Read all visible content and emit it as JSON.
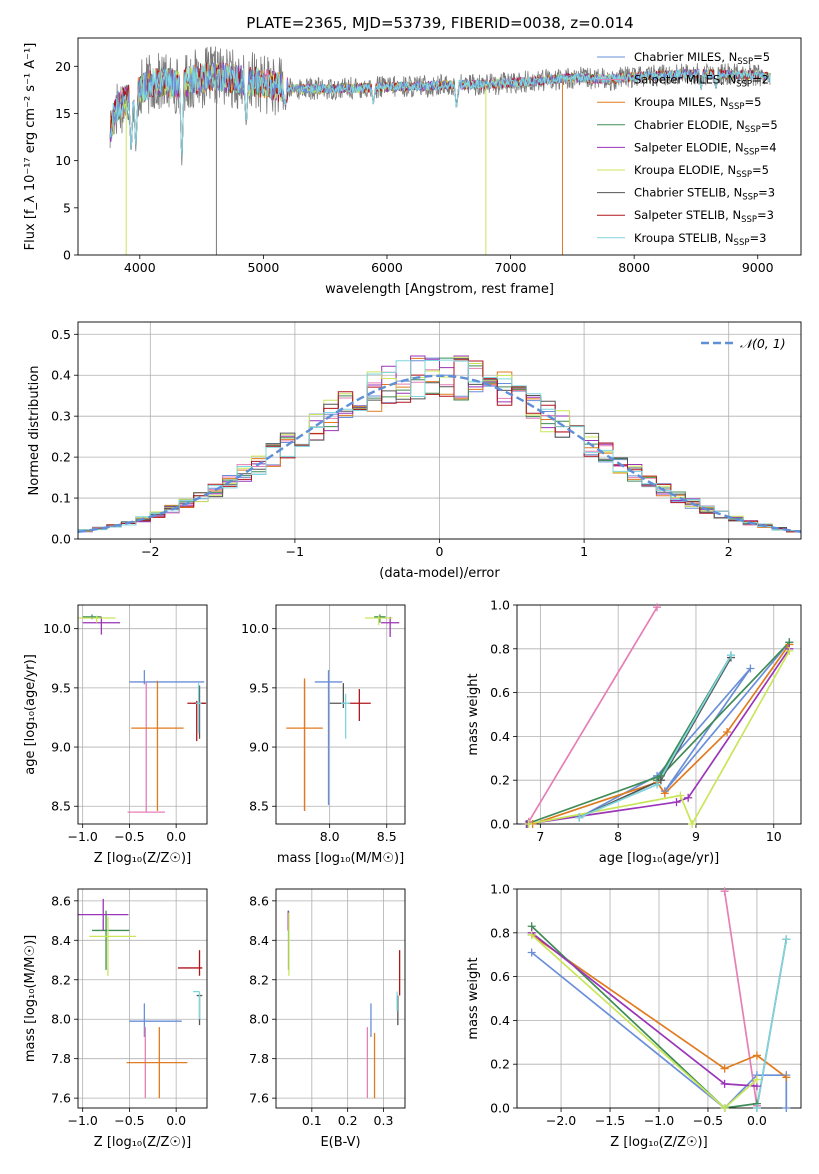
{
  "figure": {
    "title": "PLATE=2365, MJD=53739, FIBERID=0038, z=0.014"
  },
  "colors": {
    "Chabrier MILES": "#6a8fd8",
    "Salpeter MILES": "#e57fb5",
    "Kroupa MILES": "#e07b1f",
    "Chabrier ELODIE": "#3f8c57",
    "Salpeter ELODIE": "#9a35b8",
    "Kroupa ELODIE": "#c9e55a",
    "Chabrier STELIB": "#555555",
    "Salpeter STELIB": "#b0151c",
    "Kroupa STELIB": "#7fd6de",
    "normal_curve": "#5f8fd8",
    "grid": "#b0b0b0"
  },
  "chart_data": [
    {
      "id": "spectrum",
      "type": "line",
      "xlabel": "wavelength [Angstrom, rest frame]",
      "ylabel": "Flux [f_λ 10⁻¹⁷ erg cm⁻² s⁻¹ A⁻¹]",
      "xlim": [
        3500,
        9350
      ],
      "ylim": [
        0,
        23
      ],
      "xticks": [
        4000,
        5000,
        6000,
        7000,
        8000,
        9000
      ],
      "yticks": [
        0,
        5,
        10,
        15,
        20
      ],
      "grid": false,
      "legend_position": "top-right",
      "legend": [
        {
          "name": "Chabrier MILES",
          "main": "Chabrier MILES, N",
          "sub": "SSP",
          "tail": "=5"
        },
        {
          "name": "Salpeter MILES",
          "main": "Salpeter MILES, N",
          "sub": "SSP",
          "tail": "=2"
        },
        {
          "name": "Kroupa MILES",
          "main": "Kroupa MILES, N",
          "sub": "SSP",
          "tail": "=5"
        },
        {
          "name": "Chabrier ELODIE",
          "main": "Chabrier ELODIE, N",
          "sub": "SSP",
          "tail": "=5"
        },
        {
          "name": "Salpeter ELODIE",
          "main": "Salpeter ELODIE, N",
          "sub": "SSP",
          "tail": "=4"
        },
        {
          "name": "Kroupa ELODIE",
          "main": "Kroupa ELODIE, N",
          "sub": "SSP",
          "tail": "=5"
        },
        {
          "name": "Chabrier STELIB",
          "main": "Chabrier STELIB, N",
          "sub": "SSP",
          "tail": "=3"
        },
        {
          "name": "Salpeter STELIB",
          "main": "Salpeter STELIB, N",
          "sub": "SSP",
          "tail": "=3"
        },
        {
          "name": "Kroupa STELIB",
          "main": "Kroupa STELIB, N",
          "sub": "SSP",
          "tail": "=3"
        }
      ],
      "continuum": [
        [
          3760,
          13
        ],
        [
          3800,
          15.5
        ],
        [
          3900,
          16.5
        ],
        [
          4000,
          17.5
        ],
        [
          4100,
          18.2
        ],
        [
          4200,
          18.3
        ],
        [
          4300,
          18
        ],
        [
          4400,
          18.5
        ],
        [
          4600,
          19
        ],
        [
          4800,
          18.6
        ],
        [
          5000,
          18.2
        ],
        [
          5200,
          17.6
        ],
        [
          5500,
          17.6
        ],
        [
          6000,
          17.8
        ],
        [
          6500,
          18
        ],
        [
          7000,
          18.2
        ],
        [
          7500,
          18.8
        ],
        [
          7800,
          18.6
        ],
        [
          8000,
          18.9
        ],
        [
          8500,
          19.2
        ],
        [
          9000,
          19.1
        ],
        [
          9100,
          18.8
        ]
      ],
      "dips": [
        [
          3890,
          0
        ],
        [
          4620,
          0
        ],
        [
          6800,
          0
        ],
        [
          7420,
          0
        ],
        [
          3930,
          10.5
        ],
        [
          3968,
          11
        ],
        [
          4340,
          9.5
        ],
        [
          4861,
          13.5
        ],
        [
          5175,
          15.8
        ],
        [
          5890,
          16
        ],
        [
          6563,
          15.5
        ],
        [
          8542,
          17.5
        ],
        [
          8662,
          17.6
        ]
      ]
    },
    {
      "id": "residual-histogram",
      "type": "step",
      "xlabel": "(data-model)/error",
      "ylabel": "Normed distribution",
      "xlim": [
        -2.5,
        2.5
      ],
      "ylim": [
        0,
        0.53
      ],
      "xticks": [
        -2,
        -1,
        0,
        1,
        2
      ],
      "yticks": [
        0.0,
        0.1,
        0.2,
        0.3,
        0.4,
        0.5
      ],
      "grid": true,
      "legend_position": "top-right",
      "legend": [
        {
          "name": "normal",
          "label": "𝒩(0, 1)"
        }
      ],
      "bin_width": 0.1,
      "normal": {
        "mean": 0,
        "sigma": 1
      }
    },
    {
      "id": "age-vs-Z",
      "type": "errorbar",
      "xlabel": "Z [log₁₀(Z/Z☉)]",
      "ylabel": "age  [log₁₀(age/yr)]",
      "xlim": [
        -1.05,
        0.33
      ],
      "ylim": [
        8.35,
        10.2
      ],
      "xticks": [
        -1.0,
        -0.5,
        0.0
      ],
      "yticks": [
        8.5,
        9.0,
        9.5,
        10.0
      ],
      "grid": true,
      "points": [
        {
          "s": "Chabrier MILES",
          "x": -0.1,
          "xe": [
            0.4,
            0.4
          ],
          "y": 9.55,
          "ye": [
            0.0,
            0.0
          ]
        },
        {
          "s": "Chabrier MILES",
          "x": -0.34,
          "xe": [
            0,
            0
          ],
          "y": 9.55,
          "ye": [
            0.02,
            0.1
          ]
        },
        {
          "s": "Salpeter MILES",
          "x": -0.32,
          "xe": [
            0.2,
            0.2
          ],
          "y": 8.45,
          "ye": [
            0.0,
            1.1
          ]
        },
        {
          "s": "Kroupa MILES",
          "x": -0.2,
          "xe": [
            0.28,
            0.28
          ],
          "y": 9.16,
          "ye": [
            0.7,
            0.4
          ]
        },
        {
          "s": "Chabrier ELODIE",
          "x": -0.9,
          "xe": [
            0.1,
            0.1
          ],
          "y": 10.1,
          "ye": [
            0.02,
            0.02
          ]
        },
        {
          "s": "Salpeter ELODIE",
          "x": -0.8,
          "xe": [
            0.2,
            0.2
          ],
          "y": 10.05,
          "ye": [
            0.1,
            0.05
          ]
        },
        {
          "s": "Kroupa ELODIE",
          "x": -0.85,
          "xe": [
            0.2,
            0.2
          ],
          "y": 10.09,
          "ye": [
            0.04,
            0.02
          ]
        },
        {
          "s": "Chabrier STELIB",
          "x": 0.25,
          "xe": [
            0.06,
            0.06
          ],
          "y": 9.37,
          "ye": [
            0.3,
            0.15
          ]
        },
        {
          "s": "Salpeter STELIB",
          "x": 0.22,
          "xe": [
            0.1,
            0.1
          ],
          "y": 9.37,
          "ye": [
            0.32,
            0.02
          ]
        },
        {
          "s": "Kroupa STELIB",
          "x": 0.24,
          "xe": [
            0.03,
            0.03
          ],
          "y": 9.37,
          "ye": [
            0.25,
            0.17
          ]
        }
      ]
    },
    {
      "id": "age-vs-mass",
      "type": "errorbar",
      "xlabel": "mass [log₁₀(M/M☉)]",
      "ylabel": "",
      "xlim": [
        7.53,
        8.66
      ],
      "ylim": [
        8.35,
        10.2
      ],
      "xticks": [
        8.0,
        8.5
      ],
      "yticks": [
        8.5,
        9.0,
        9.5,
        10.0
      ],
      "grid": true,
      "points": [
        {
          "s": "Chabrier MILES",
          "x": 7.99,
          "xe": [
            0.12,
            0.12
          ],
          "y": 9.55,
          "ye": [
            1.04,
            0.1
          ]
        },
        {
          "s": "Salpeter MILES",
          "x": 7.78,
          "xe": [
            0.0,
            0.0
          ],
          "y": 9.16,
          "ye": [
            0.7,
            0.4
          ]
        },
        {
          "s": "Kroupa MILES",
          "x": 7.78,
          "xe": [
            0.16,
            0.16
          ],
          "y": 9.16,
          "ye": [
            0.7,
            0.42
          ]
        },
        {
          "s": "Chabrier ELODIE",
          "x": 8.44,
          "xe": [
            0.05,
            0.05
          ],
          "y": 10.1,
          "ye": [
            0.05,
            0.02
          ]
        },
        {
          "s": "Salpeter ELODIE",
          "x": 8.53,
          "xe": [
            0.08,
            0.08
          ],
          "y": 10.05,
          "ye": [
            0.12,
            0.05
          ]
        },
        {
          "s": "Kroupa ELODIE",
          "x": 8.43,
          "xe": [
            0.12,
            0.12
          ],
          "y": 10.09,
          "ye": [
            0.06,
            0.02
          ]
        },
        {
          "s": "Chabrier STELIB",
          "x": 8.12,
          "xe": [
            0.12,
            0.03
          ],
          "y": 9.37,
          "ye": [
            0.04,
            0.17
          ]
        },
        {
          "s": "Salpeter STELIB",
          "x": 8.26,
          "xe": [
            0.1,
            0.1
          ],
          "y": 9.37,
          "ye": [
            0.15,
            0.12
          ]
        },
        {
          "s": "Kroupa STELIB",
          "x": 8.14,
          "xe": [
            0.04,
            0.04
          ],
          "y": 9.37,
          "ye": [
            0.3,
            0.08
          ]
        }
      ]
    },
    {
      "id": "mass-weight-vs-age",
      "type": "line",
      "xlabel": "age  [log₁₀(age/yr)]",
      "ylabel": "mass weight",
      "xlim": [
        6.7,
        10.35
      ],
      "ylim": [
        0,
        1.0
      ],
      "xticks": [
        7,
        8,
        9,
        10
      ],
      "yticks": [
        0.0,
        0.2,
        0.4,
        0.6,
        0.8,
        1.0
      ],
      "grid": true,
      "series": [
        {
          "s": "Salpeter MILES",
          "x": [
            6.85,
            8.5
          ],
          "y": [
            0.01,
            0.99
          ]
        },
        {
          "s": "Chabrier MILES",
          "x": [
            7.5,
            8.5,
            9.7,
            8.6,
            10.2
          ],
          "y": [
            0.03,
            0.22,
            0.71,
            0.15,
            0.83
          ]
        },
        {
          "s": "Kroupa MILES",
          "x": [
            6.9,
            8.5,
            8.6,
            9.4,
            10.2
          ],
          "y": [
            0.0,
            0.19,
            0.14,
            0.42,
            0.82
          ]
        },
        {
          "s": "Chabrier ELODIE",
          "x": [
            6.82,
            8.55,
            9.45,
            8.5,
            10.2
          ],
          "y": [
            0.0,
            0.22,
            0.77,
            0.2,
            0.83
          ]
        },
        {
          "s": "Salpeter ELODIE",
          "x": [
            6.83,
            8.75,
            8.9,
            10.2
          ],
          "y": [
            0.0,
            0.1,
            0.12,
            0.8
          ]
        },
        {
          "s": "Kroupa ELODIE",
          "x": [
            6.85,
            8.8,
            8.95,
            10.2
          ],
          "y": [
            0.0,
            0.13,
            0.0,
            0.79
          ]
        },
        {
          "s": "Chabrier STELIB",
          "x": [
            7.5,
            8.55,
            9.45
          ],
          "y": [
            0.03,
            0.2,
            0.76
          ]
        },
        {
          "s": "Kroupa STELIB",
          "x": [
            7.5,
            8.5,
            9.45
          ],
          "y": [
            0.03,
            0.18,
            0.77
          ]
        }
      ]
    },
    {
      "id": "mass-vs-Z",
      "type": "errorbar",
      "xlabel": "Z [log₁₀(Z/Z☉)]",
      "ylabel": "mass [log₁₀(M/M☉)]",
      "xlim": [
        -1.05,
        0.33
      ],
      "ylim": [
        7.55,
        8.66
      ],
      "xticks": [
        -1.0,
        -0.5,
        0.0
      ],
      "yticks": [
        7.6,
        7.8,
        8.0,
        8.2,
        8.4,
        8.6
      ],
      "grid": true,
      "points": [
        {
          "s": "Chabrier MILES",
          "x": -0.34,
          "xe": [
            0.16,
            0.4
          ],
          "y": 7.99,
          "ye": [
            0.08,
            0.09
          ]
        },
        {
          "s": "Salpeter MILES",
          "x": -0.33,
          "xe": [
            0.0,
            0.0
          ],
          "y": 7.78,
          "ye": [
            0.18,
            0.18
          ]
        },
        {
          "s": "Kroupa MILES",
          "x": -0.18,
          "xe": [
            0.35,
            0.3
          ],
          "y": 7.78,
          "ye": [
            0.18,
            0.18
          ]
        },
        {
          "s": "Chabrier ELODIE",
          "x": -0.75,
          "xe": [
            0.15,
            0.25
          ],
          "y": 8.45,
          "ye": [
            0.2,
            0.1
          ]
        },
        {
          "s": "Salpeter ELODIE",
          "x": -0.78,
          "xe": [
            0.27,
            0.27
          ],
          "y": 8.53,
          "ye": [
            0.08,
            0.08
          ]
        },
        {
          "s": "Kroupa ELODIE",
          "x": -0.73,
          "xe": [
            0.2,
            0.3
          ],
          "y": 8.42,
          "ye": [
            0.2,
            0.1
          ]
        },
        {
          "s": "Chabrier STELIB",
          "x": 0.25,
          "xe": [
            0.03,
            0.03
          ],
          "y": 8.12,
          "ye": [
            0.15,
            0.0
          ]
        },
        {
          "s": "Salpeter STELIB",
          "x": 0.25,
          "xe": [
            0.23,
            0.03
          ],
          "y": 8.26,
          "ye": [
            0.04,
            0.09
          ]
        },
        {
          "s": "Kroupa STELIB",
          "x": 0.25,
          "xe": [
            0.07,
            0.0
          ],
          "y": 8.14,
          "ye": [
            0.14,
            0.0
          ]
        }
      ]
    },
    {
      "id": "mass-vs-ebv",
      "type": "errorbar",
      "xlabel": "E(B-V)",
      "ylabel": "",
      "xlim": [
        0.0,
        0.36
      ],
      "ylim": [
        7.55,
        8.66
      ],
      "xticks": [
        0.1,
        0.2,
        0.3
      ],
      "yticks": [
        7.6,
        7.8,
        8.0,
        8.2,
        8.4,
        8.6
      ],
      "grid": true,
      "points": [
        {
          "s": "Chabrier MILES",
          "x": 0.265,
          "xe": [
            0,
            0
          ],
          "y": 7.99,
          "ye": [
            0.08,
            0.09
          ]
        },
        {
          "s": "Salpeter MILES",
          "x": 0.255,
          "xe": [
            0,
            0
          ],
          "y": 7.78,
          "ye": [
            0.18,
            0.18
          ]
        },
        {
          "s": "Kroupa MILES",
          "x": 0.275,
          "xe": [
            0,
            0
          ],
          "y": 7.78,
          "ye": [
            0.18,
            0.15
          ]
        },
        {
          "s": "Chabrier ELODIE",
          "x": 0.035,
          "xe": [
            0,
            0
          ],
          "y": 8.45,
          "ye": [
            0.2,
            0.1
          ]
        },
        {
          "s": "Salpeter ELODIE",
          "x": 0.034,
          "xe": [
            0,
            0
          ],
          "y": 8.53,
          "ye": [
            0.08,
            0.02
          ]
        },
        {
          "s": "Kroupa ELODIE",
          "x": 0.036,
          "xe": [
            0,
            0
          ],
          "y": 8.42,
          "ye": [
            0.2,
            0.12
          ]
        },
        {
          "s": "Chabrier STELIB",
          "x": 0.34,
          "xe": [
            0,
            0
          ],
          "y": 8.12,
          "ye": [
            0.15,
            0.0
          ]
        },
        {
          "s": "Salpeter STELIB",
          "x": 0.345,
          "xe": [
            0,
            0
          ],
          "y": 8.26,
          "ye": [
            0.14,
            0.09
          ]
        },
        {
          "s": "Kroupa STELIB",
          "x": 0.338,
          "xe": [
            0,
            0
          ],
          "y": 8.14,
          "ye": [
            0.1,
            0.0
          ]
        }
      ]
    },
    {
      "id": "mass-weight-vs-Z",
      "type": "line",
      "xlabel": "Z [log₁₀(Z/Z☉)]",
      "ylabel": "mass weight",
      "xlim": [
        -2.45,
        0.45
      ],
      "ylim": [
        0,
        1.0
      ],
      "xticks": [
        -2.0,
        -1.5,
        -1.0,
        -0.5,
        0.0
      ],
      "yticks": [
        0.0,
        0.2,
        0.4,
        0.6,
        0.8,
        1.0
      ],
      "grid": true,
      "series": [
        {
          "s": "Salpeter MILES",
          "x": [
            -0.33,
            0.0
          ],
          "y": [
            0.99,
            0.01
          ]
        },
        {
          "s": "Chabrier MILES",
          "x": [
            -2.3,
            -0.33,
            0.0,
            0.3,
            0.3
          ],
          "y": [
            0.71,
            0.0,
            0.15,
            0.15,
            0.0
          ]
        },
        {
          "s": "Kroupa MILES",
          "x": [
            -2.3,
            -0.33,
            0.0,
            0.3
          ],
          "y": [
            0.79,
            0.18,
            0.24,
            0.14
          ]
        },
        {
          "s": "Chabrier ELODIE",
          "x": [
            -2.3,
            -0.33,
            0.0
          ],
          "y": [
            0.83,
            0.0,
            0.02
          ]
        },
        {
          "s": "Salpeter ELODIE",
          "x": [
            -2.3,
            -0.33,
            0.0
          ],
          "y": [
            0.8,
            0.11,
            0.1
          ]
        },
        {
          "s": "Kroupa ELODIE",
          "x": [
            -2.3,
            -0.33,
            0.0
          ],
          "y": [
            0.79,
            0.0,
            0.13
          ]
        },
        {
          "s": "Chabrier STELIB",
          "x": [
            0.0,
            0.3
          ],
          "y": [
            0.0,
            0.77
          ]
        },
        {
          "s": "Kroupa STELIB",
          "x": [
            0.0,
            0.3
          ],
          "y": [
            0.0,
            0.77
          ]
        }
      ]
    }
  ]
}
